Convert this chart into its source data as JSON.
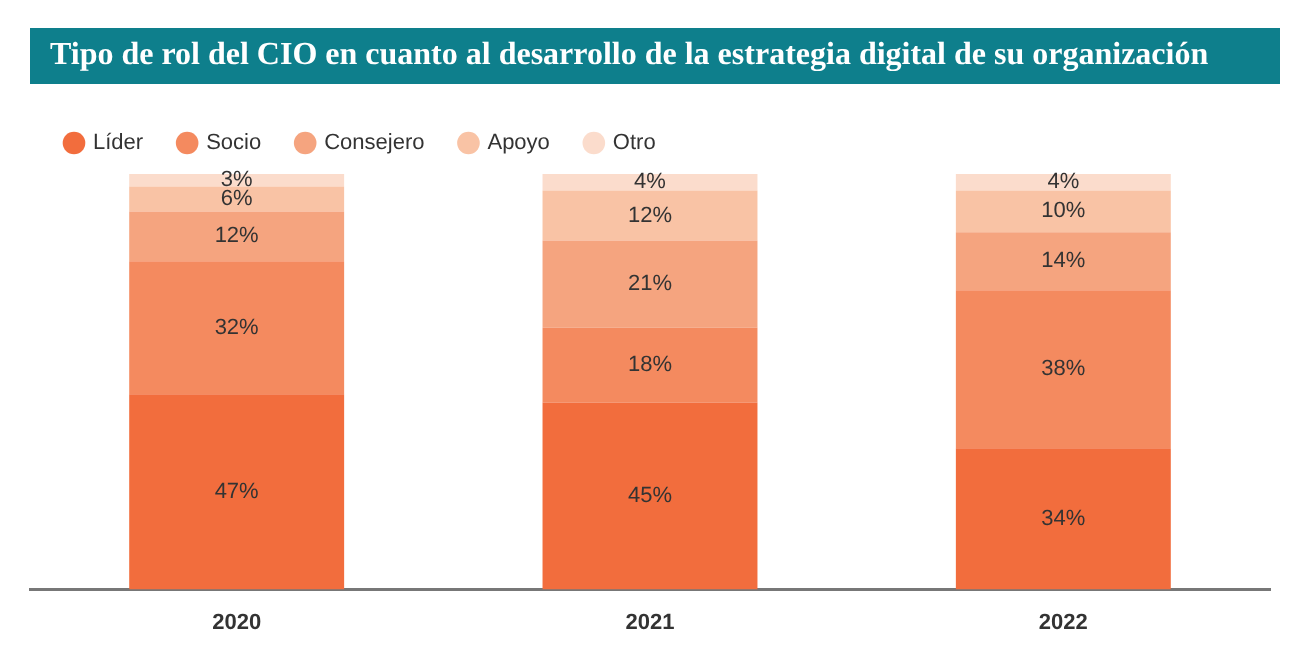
{
  "chart_data": {
    "type": "bar",
    "title": "Tipo de rol del CIO en cuanto al desarrollo de la estrategia digital de su organización",
    "categories": [
      "2020",
      "2021",
      "2022"
    ],
    "stacked": true,
    "legend": "top left",
    "grid": false,
    "tick_labels": "x",
    "series": [
      {
        "name": "Líder",
        "color": "#f26d3d",
        "values": [
          47,
          45,
          34
        ],
        "value_labels": [
          "47%",
          "45%",
          "34%"
        ]
      },
      {
        "name": "Socio",
        "color": "#f48a5f",
        "values": [
          32,
          18,
          38
        ],
        "value_labels": [
          "32%",
          "18%",
          "38%"
        ]
      },
      {
        "name": "Consejero",
        "color": "#f5a47f",
        "values": [
          12,
          21,
          14
        ],
        "value_labels": [
          "12%",
          "21%",
          "14%"
        ]
      },
      {
        "name": "Apoyo",
        "color": "#f9c3a5",
        "values": [
          6,
          12,
          10
        ],
        "value_labels": [
          "6%",
          "12%",
          "10%"
        ]
      },
      {
        "name": "Otro",
        "color": "#fbdccc",
        "values": [
          3,
          4,
          4
        ],
        "value_labels": [
          "3%",
          "4%",
          "4%"
        ]
      }
    ]
  }
}
